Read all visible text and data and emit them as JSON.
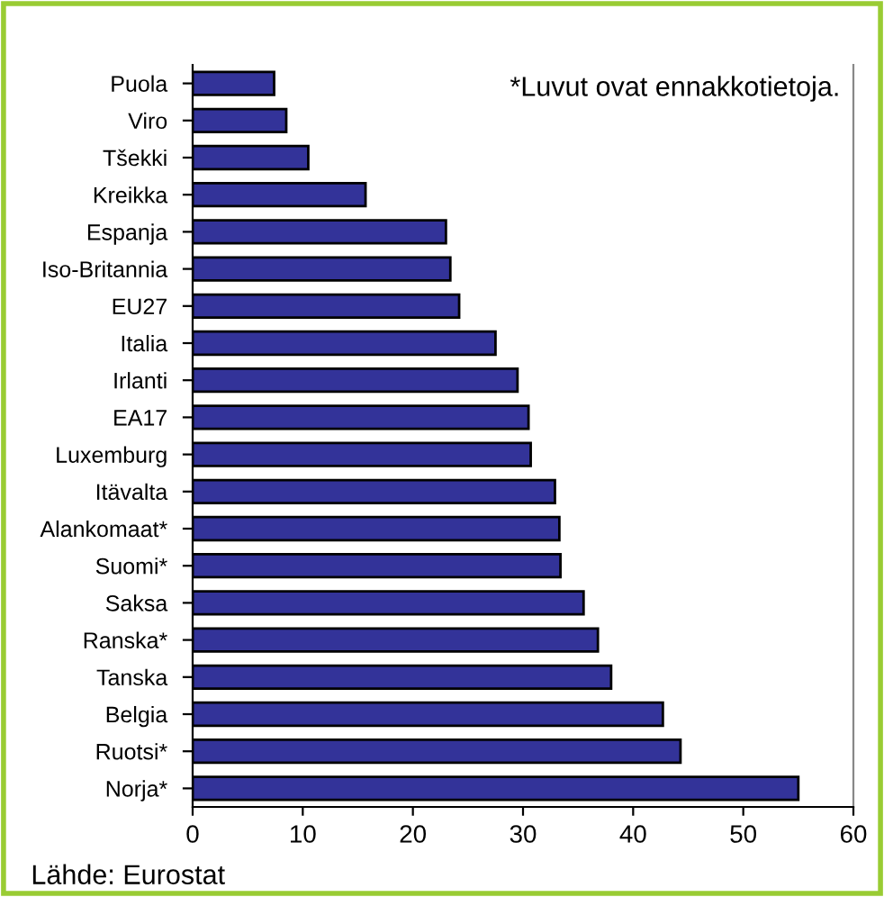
{
  "chart_data": {
    "type": "bar",
    "orientation": "horizontal",
    "categories": [
      "Puola",
      "Viro",
      "Tšekki",
      "Kreikka",
      "Espanja",
      "Iso-Britannia",
      "EU27",
      "Italia",
      "Irlanti",
      "EA17",
      "Luxemburg",
      "Itävalta",
      "Alankomaat*",
      "Suomi*",
      "Saksa",
      "Ranska*",
      "Tanska",
      "Belgia",
      "Ruotsi*",
      "Norja*"
    ],
    "values": [
      7.4,
      8.5,
      10.5,
      15.7,
      23.0,
      23.4,
      24.2,
      27.5,
      29.5,
      30.5,
      30.7,
      32.9,
      33.3,
      33.4,
      35.5,
      36.8,
      38.0,
      42.7,
      44.3,
      55.0
    ],
    "color": "#333399",
    "xlim": [
      0,
      60
    ],
    "xticks": [
      0,
      10,
      20,
      30,
      40,
      50,
      60
    ],
    "grid": false,
    "annotations": [
      "*Luvut ovat ennakkotietoja.",
      "Lähde: Eurostat"
    ]
  }
}
